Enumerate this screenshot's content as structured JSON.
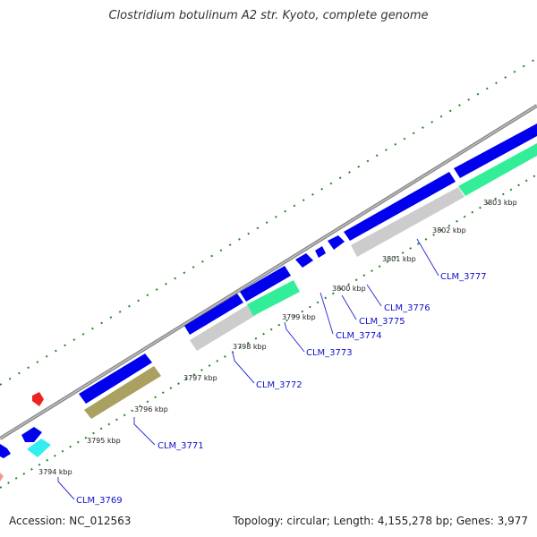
{
  "title": "Clostridium botulinum A2 str. Kyoto, complete genome",
  "footer": {
    "accession": "Accession: NC_012563",
    "summary": "Topology: circular; Length: 4,155,278 bp; Genes: 3,977"
  },
  "colors": {
    "backbone": "#8c8c8c",
    "cds": "#0000ee",
    "cds_alt_gray": "#cccccc",
    "cds_alt_green": "#33ee99",
    "cds_alt_olive": "#aaa060",
    "cds_alt_cyan": "#33eeee",
    "rna": "#ee2222",
    "tick": "#228822",
    "label_line": "#3333dd"
  },
  "tick_labels": [
    "3794 kbp",
    "3795 kbp",
    "3796 kbp",
    "3797 kbp",
    "3798 kbp",
    "3799 kbp",
    "3800 kbp",
    "3801 kbp",
    "3802 kbp",
    "3803 kbp"
  ],
  "gene_labels": [
    "CLM_3769",
    "CLM_3771",
    "CLM_3772",
    "CLM_3773",
    "CLM_3774",
    "CLM_3775",
    "CLM_3776",
    "CLM_3777"
  ]
}
